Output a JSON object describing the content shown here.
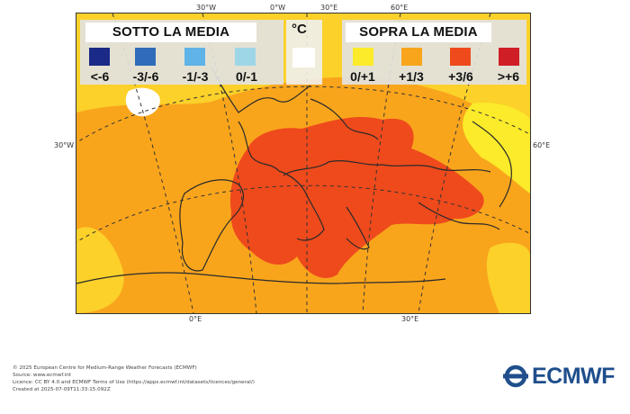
{
  "map": {
    "longitude_labels_top": [
      "30°W",
      "0°W",
      "30°E",
      "60°E"
    ],
    "latitude_labels": {
      "left": "30°W",
      "right": "60°E"
    },
    "longitude_labels_bottom": [
      "0°E",
      "30°E"
    ],
    "unit": "°C"
  },
  "legend": {
    "below": {
      "title": "SOTTO LA MEDIA",
      "items": [
        {
          "label": "<-6",
          "color": "#1a2a86"
        },
        {
          "label": "-3/-6",
          "color": "#2f6bb8"
        },
        {
          "label": "-1/-3",
          "color": "#5fb3e6"
        },
        {
          "label": "0/-1",
          "color": "#9ed6e8"
        }
      ]
    },
    "above": {
      "title": "SOPRA LA MEDIA",
      "items": [
        {
          "label": "0/+1",
          "color": "#fbeb2a"
        },
        {
          "label": "+1/3",
          "color": "#f9a51c"
        },
        {
          "label": "+3/6",
          "color": "#ee4a1c"
        },
        {
          "label": ">+6",
          "color": "#cf1e26"
        }
      ]
    },
    "neutral_color": "#ffffff"
  },
  "footer": {
    "lines": [
      "© 2025 European Centre for Medium-Range Weather Forecasts (ECMWF)",
      "Source: www.ecmwf.int",
      "Licence: CC BY 4.0 and ECMWF Terms of Use (https://apps.ecmwf.int/datasets/licences/general/)",
      "Created at 2025-07-09T11:33:15.092Z"
    ]
  },
  "logo": {
    "text": "ECMWF",
    "color": "#1f4e8c"
  }
}
